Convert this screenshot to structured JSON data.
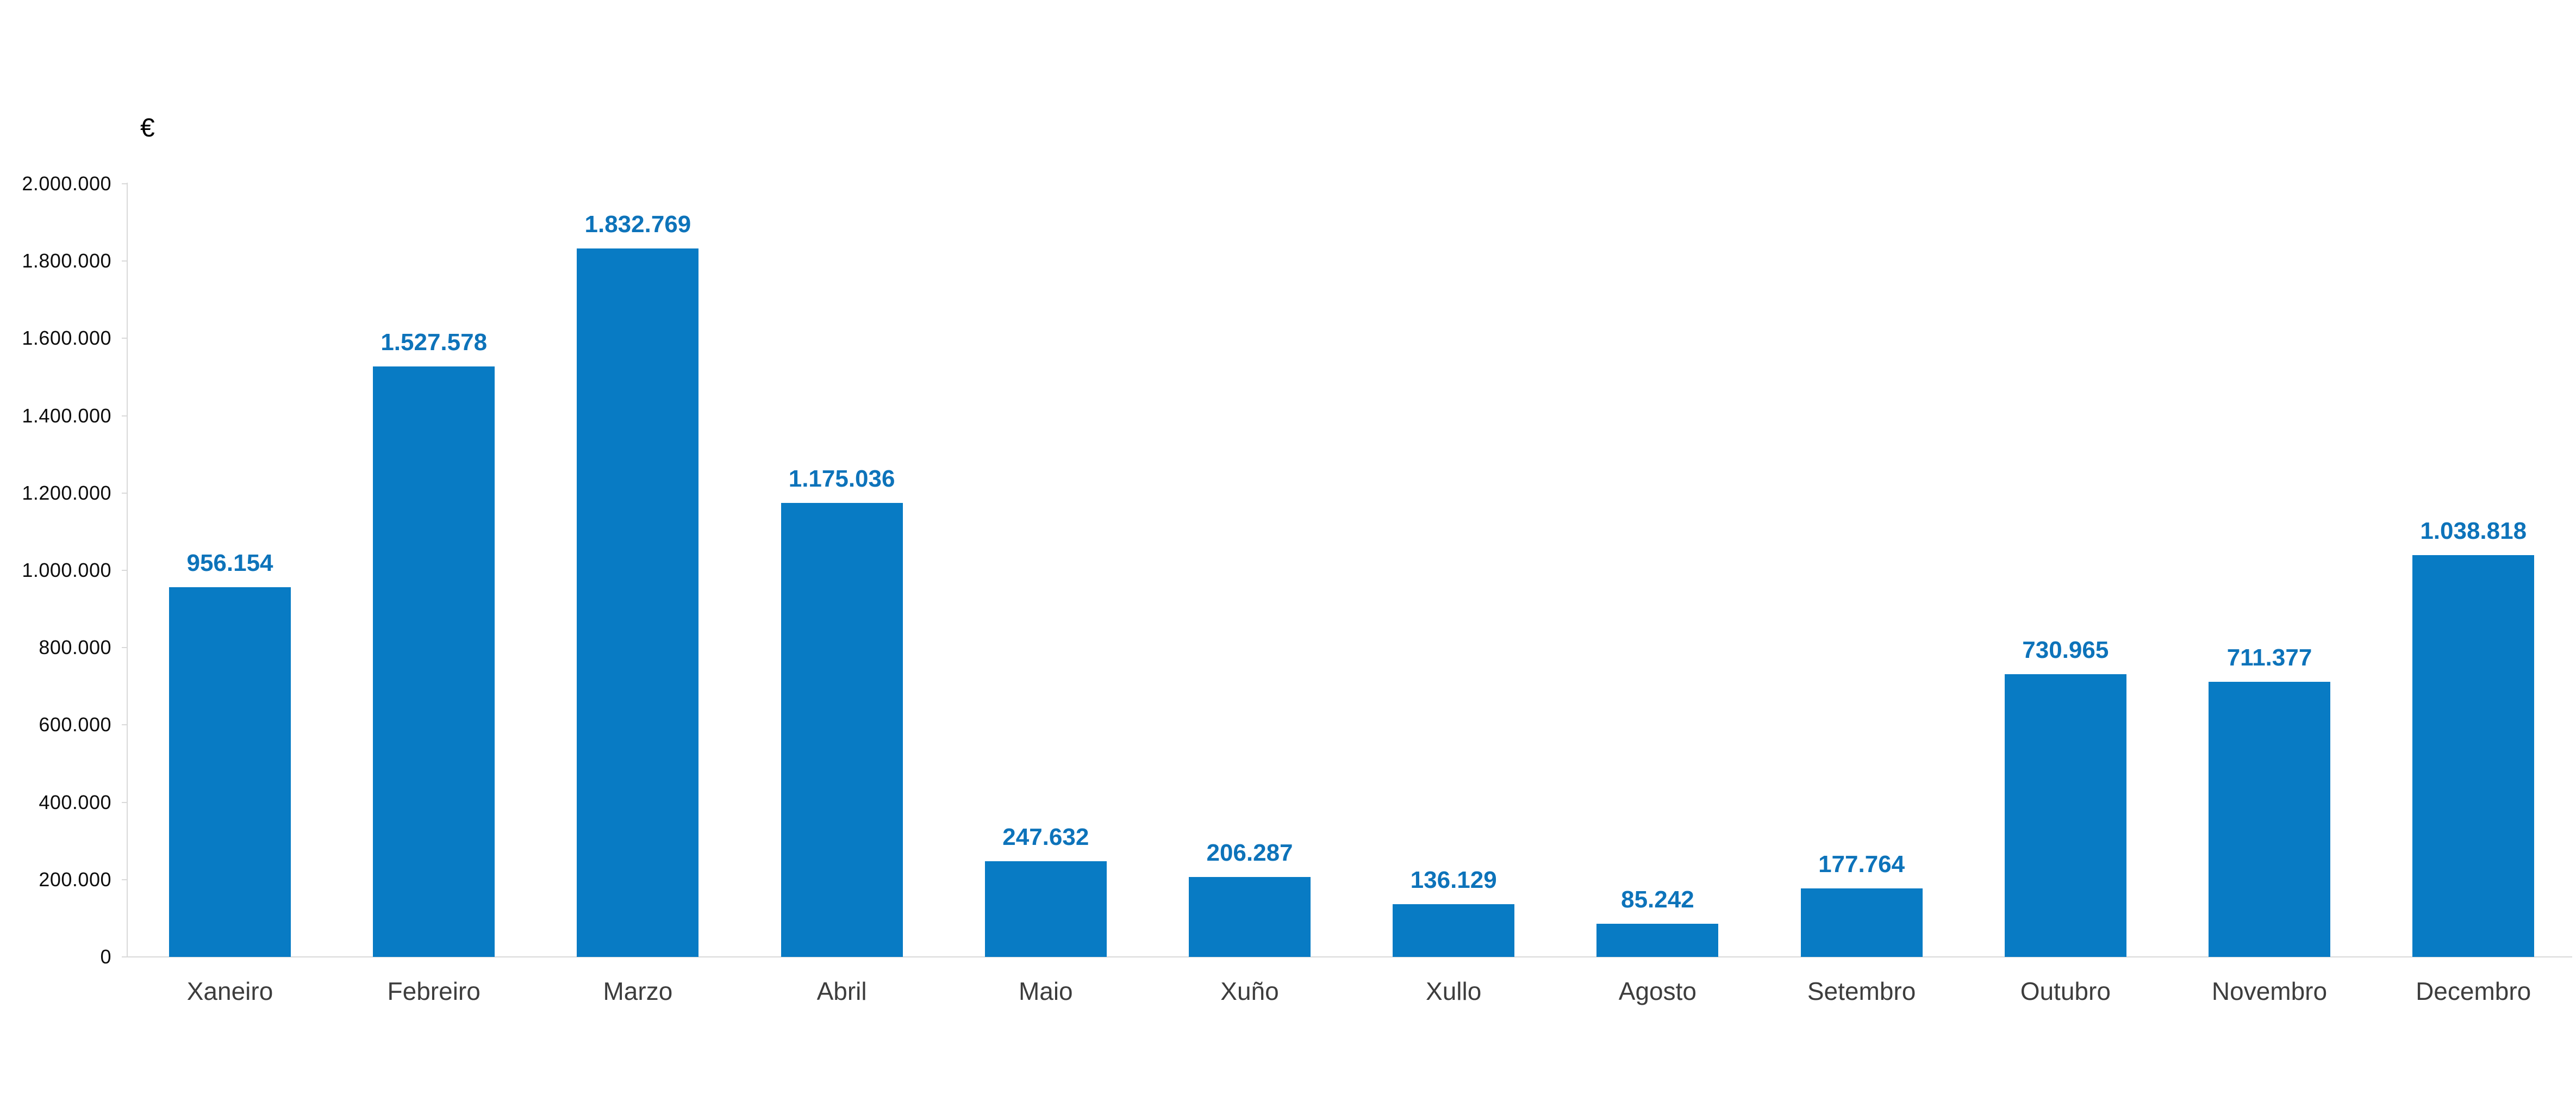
{
  "chart_data": {
    "type": "bar",
    "title": "",
    "xlabel": "",
    "ylabel": "€",
    "categories": [
      "Xaneiro",
      "Febreiro",
      "Marzo",
      "Abril",
      "Maio",
      "Xuño",
      "Xullo",
      "Agosto",
      "Setembro",
      "Outubro",
      "Novembro",
      "Decembro"
    ],
    "values": [
      956154,
      1527578,
      1832769,
      1175036,
      247632,
      206287,
      136129,
      85242,
      177764,
      730965,
      711377,
      1038818
    ],
    "value_labels": [
      "956.154",
      "1.527.578",
      "1.832.769",
      "1.175.036",
      "247.632",
      "206.287",
      "136.129",
      "85.242",
      "177.764",
      "730.965",
      "711.377",
      "1.038.818"
    ],
    "ylim": [
      0,
      2000000
    ],
    "ytick_step": 200000,
    "ytick_labels": [
      "0",
      "200.000",
      "400.000",
      "600.000",
      "800.000",
      "1.000.000",
      "1.200.000",
      "1.400.000",
      "1.600.000",
      "1.800.000",
      "2.000.000"
    ],
    "grid": false,
    "legend": false,
    "bar_color": "#087bc4",
    "data_label_color": "#0d73ba"
  }
}
